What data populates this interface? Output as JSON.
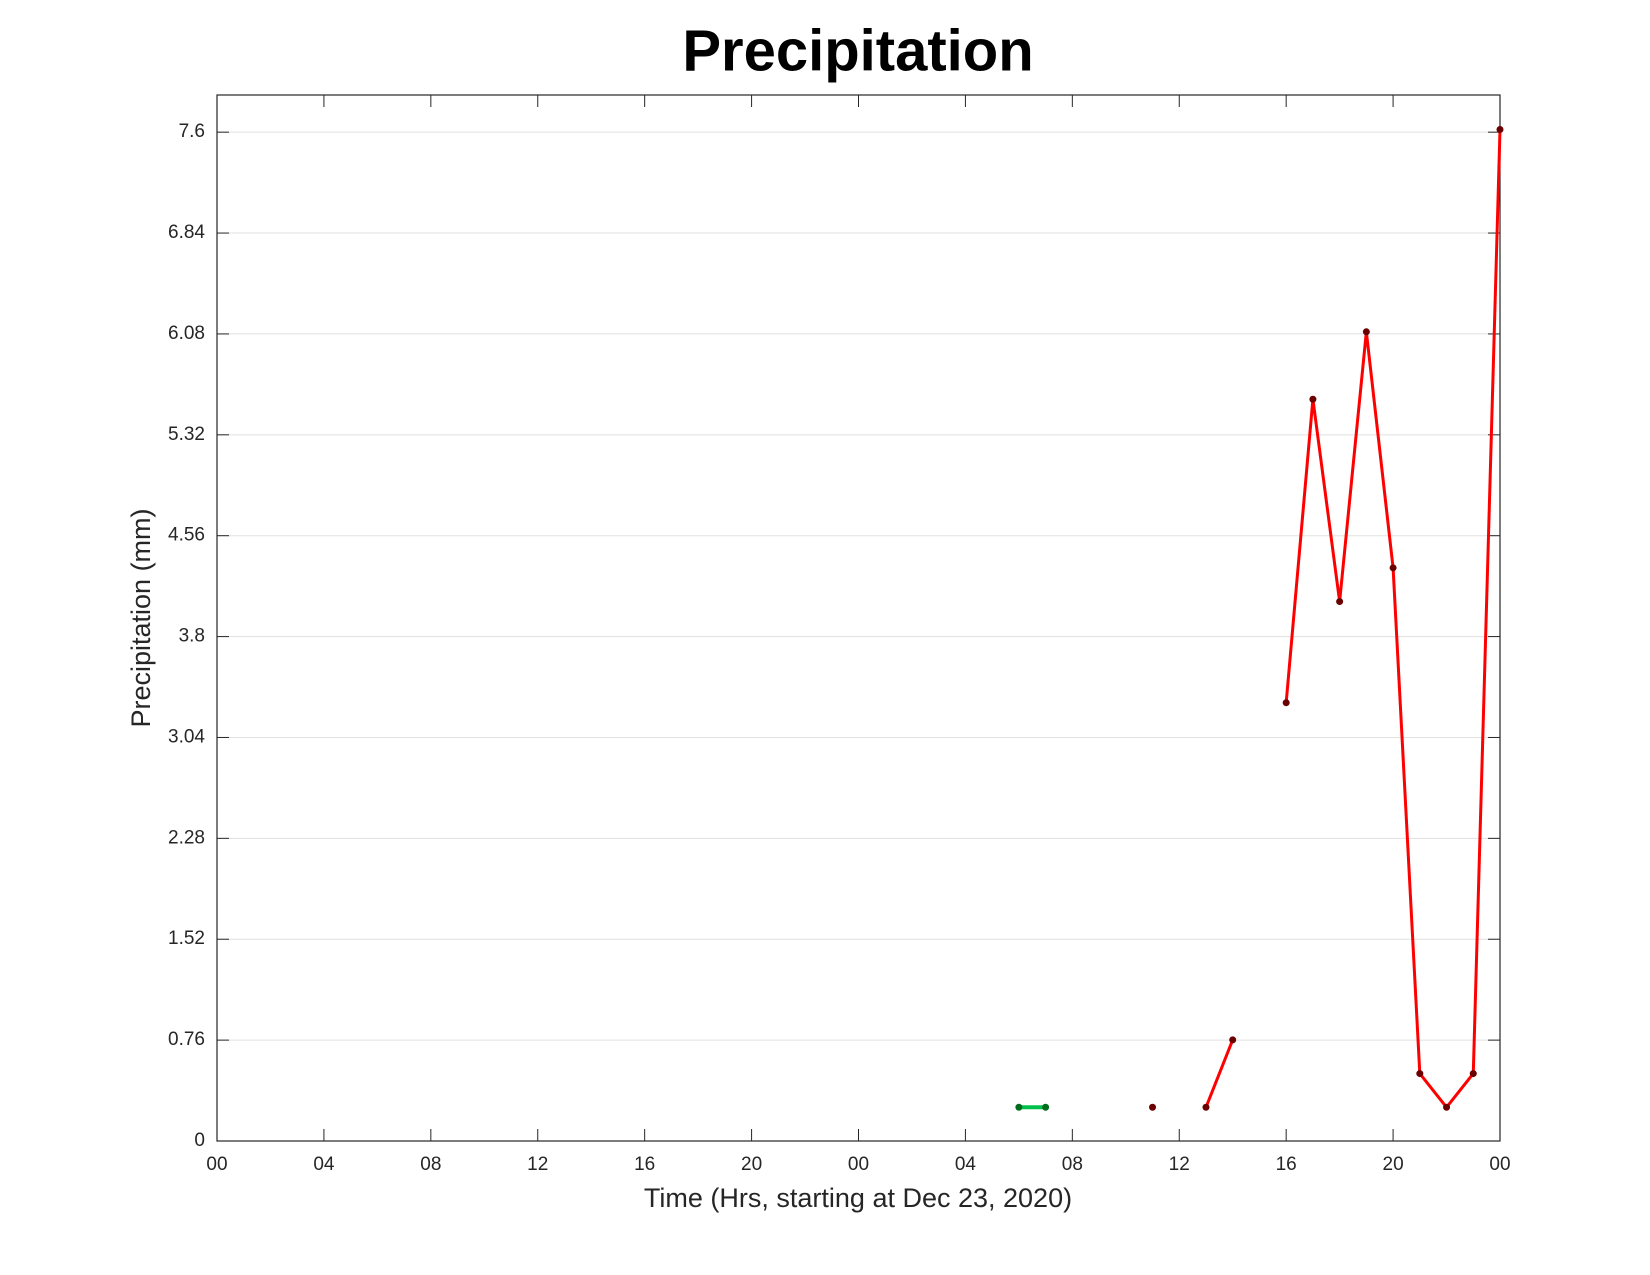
{
  "chart_data": {
    "type": "line",
    "title": "Precipitation",
    "x_label": "Time (Hrs, starting at Dec 23, 2020)",
    "y_label": "Precipitation (mm)",
    "x": [
      30,
      31,
      32,
      33,
      34,
      35,
      36,
      37,
      38,
      39,
      40,
      41,
      42,
      43,
      44,
      45,
      46,
      47,
      48
    ],
    "series": [
      {
        "color": "#00c04b",
        "marker_color": "#006d1e",
        "values": [
          0.254,
          0.254,
          null,
          null,
          null,
          null,
          null,
          null,
          null,
          null,
          null,
          null,
          null,
          null,
          null,
          null,
          null,
          null,
          null
        ]
      },
      {
        "color": "#ff0000",
        "marker_color": "#6b0000",
        "values": [
          null,
          null,
          null,
          null,
          null,
          0.254,
          null,
          0.254,
          0.762,
          null,
          3.302,
          5.588,
          4.064,
          6.096,
          4.318,
          0.508,
          0.254,
          0.508,
          7.62
        ]
      }
    ],
    "xlim": [
      0,
      48
    ],
    "xticks": [
      {
        "value": 0,
        "label": "00"
      },
      {
        "value": 4,
        "label": "04"
      },
      {
        "value": 8,
        "label": "08"
      },
      {
        "value": 12,
        "label": "12"
      },
      {
        "value": 16,
        "label": "16"
      },
      {
        "value": 20,
        "label": "20"
      },
      {
        "value": 24,
        "label": "00"
      },
      {
        "value": 28,
        "label": "04"
      },
      {
        "value": 32,
        "label": "08"
      },
      {
        "value": 36,
        "label": "12"
      },
      {
        "value": 40,
        "label": "16"
      },
      {
        "value": 44,
        "label": "20"
      },
      {
        "value": 48,
        "label": "00"
      }
    ],
    "ylim": [
      0,
      7.88
    ],
    "yticks": [
      0,
      0.76,
      1.52,
      2.28,
      3.04,
      3.8,
      4.56,
      5.32,
      6.08,
      6.84,
      7.6
    ],
    "grid": true
  }
}
